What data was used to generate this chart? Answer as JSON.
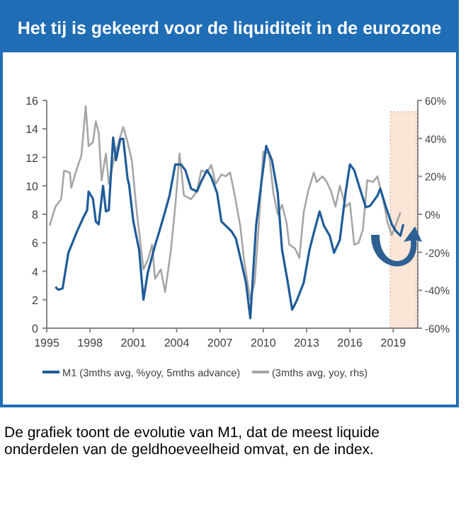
{
  "chart_data": {
    "type": "line",
    "title": "Het tij is gekeerd voor de liquiditeit  in de eurozone",
    "xlim": [
      1995,
      2020.7
    ],
    "xticks": [
      1995,
      1998,
      2001,
      2004,
      2007,
      2010,
      2013,
      2016,
      2019
    ],
    "ylim": [
      0,
      16
    ],
    "yticks": [
      0,
      2,
      4,
      6,
      8,
      10,
      12,
      14,
      16
    ],
    "y2lim": [
      -60,
      60
    ],
    "y2ticks": [
      {
        "value": -60,
        "label": "-60%"
      },
      {
        "value": -40,
        "label": "-40%"
      },
      {
        "value": -20,
        "label": "-20%"
      },
      {
        "value": 0,
        "label": "0%"
      },
      {
        "value": 20,
        "label": "20%"
      },
      {
        "value": 40,
        "label": "40%"
      },
      {
        "value": 60,
        "label": "60%"
      }
    ],
    "grid": false,
    "legend": "bottom",
    "bands": [
      {
        "axis": "x",
        "from": 2018.8,
        "to": 2020.6,
        "color": "#fbe5d6"
      }
    ],
    "series": [
      {
        "name": "M1 (3mths avg, %yoy, 5mths advance)",
        "color": "#1f5c99",
        "x": [
          1995.6,
          1995.8,
          1996.1,
          1996.5,
          1997.1,
          1997.5,
          1997.8,
          1997.9,
          1998.2,
          1998.4,
          1998.6,
          1998.9,
          1999.1,
          1999.3,
          1999.6,
          1999.8,
          2000.1,
          2000.3,
          2000.6,
          2000.7,
          2001.0,
          2001.4,
          2001.7,
          2002.0,
          2002.5,
          2002.8,
          2003.2,
          2003.5,
          2003.9,
          2004.3,
          2004.6,
          2005.0,
          2005.4,
          2005.7,
          2006.1,
          2006.4,
          2006.8,
          2007.1,
          2007.4,
          2007.8,
          2008.1,
          2008.4,
          2008.8,
          2009.1,
          2009.5,
          2009.9,
          2010.2,
          2010.6,
          2011.0,
          2011.3,
          2011.7,
          2012.0,
          2012.3,
          2012.8,
          2013.2,
          2013.5,
          2013.9,
          2014.2,
          2014.6,
          2014.9,
          2015.3,
          2015.7,
          2016.0,
          2016.3,
          2016.6,
          2017.1,
          2017.4,
          2017.9,
          2018.1,
          2018.5,
          2018.9,
          2019.2,
          2019.5,
          2019.7
        ],
        "values": [
          2.9,
          2.7,
          2.8,
          5.3,
          6.8,
          7.7,
          8.3,
          9.6,
          9.1,
          7.5,
          7.3,
          10.0,
          8.2,
          8.3,
          13.4,
          11.8,
          13.3,
          13.3,
          10.5,
          10.1,
          7.5,
          5.5,
          2.0,
          3.9,
          5.8,
          6.8,
          8.2,
          9.3,
          11.5,
          11.5,
          11.1,
          9.8,
          9.6,
          10.3,
          11.1,
          10.6,
          9.5,
          7.5,
          7.2,
          6.8,
          6.3,
          5.0,
          3.2,
          0.7,
          7.2,
          10.5,
          12.8,
          11.8,
          9.5,
          5.5,
          3.2,
          1.3,
          1.9,
          3.2,
          5.5,
          6.7,
          8.2,
          7.2,
          6.5,
          5.3,
          6.2,
          9.5,
          11.5,
          11.1,
          10.1,
          8.5,
          8.6,
          9.3,
          9.8,
          8.5,
          7.3,
          6.8,
          6.5,
          7.3
        ]
      },
      {
        "name": "(3mths avg, yoy, rhs)",
        "color": "#a6a6a6",
        "axis": "y2",
        "x": [
          1995.2,
          1995.6,
          1996.0,
          1996.2,
          1996.6,
          1996.7,
          1997.0,
          1997.4,
          1997.7,
          1997.9,
          1998.2,
          1998.4,
          1998.6,
          1998.8,
          1999.1,
          1999.3,
          1999.6,
          1999.9,
          2000.3,
          2000.6,
          2000.9,
          2001.2,
          2001.5,
          2001.7,
          2002.0,
          2002.3,
          2002.5,
          2002.9,
          2003.2,
          2003.6,
          2003.9,
          2004.2,
          2004.5,
          2005.0,
          2005.4,
          2005.7,
          2006.1,
          2006.4,
          2006.7,
          2007.1,
          2007.4,
          2007.7,
          2008.0,
          2008.4,
          2008.7,
          2009.1,
          2009.4,
          2009.7,
          2010.0,
          2010.4,
          2010.7,
          2011.0,
          2011.3,
          2011.6,
          2011.8,
          2012.2,
          2012.5,
          2012.8,
          2013.1,
          2013.5,
          2013.7,
          2014.1,
          2014.4,
          2014.7,
          2015.0,
          2015.3,
          2015.7,
          2016.0,
          2016.3,
          2016.6,
          2016.9,
          2017.2,
          2017.6,
          2017.9,
          2018.3,
          2018.6,
          2018.9,
          2019.2,
          2019.5
        ],
        "values": [
          -6,
          4,
          8,
          23,
          22,
          14,
          22,
          31,
          57,
          36,
          38,
          49,
          43,
          18,
          32,
          16,
          27,
          36,
          46,
          38,
          28,
          4,
          -16,
          -29,
          -24,
          -16,
          -34,
          -29,
          -41,
          -19,
          4,
          32,
          10,
          8,
          12,
          23,
          22,
          26,
          16,
          21,
          20,
          22,
          11,
          -6,
          -26,
          -45,
          -36,
          -4,
          33,
          32,
          11,
          0,
          5,
          -4,
          -16,
          -18,
          -23,
          1,
          12,
          22,
          17,
          20,
          17,
          12,
          4,
          15,
          4,
          6,
          -16,
          -15,
          -8,
          18,
          17,
          20,
          8,
          -4,
          -11,
          -5,
          1
        ]
      }
    ],
    "annotations": [
      "De grafiek toont de evolutie van M1, dat de meest liquide onderdelen van de geldhoeveelheid omvat, en de index."
    ]
  }
}
